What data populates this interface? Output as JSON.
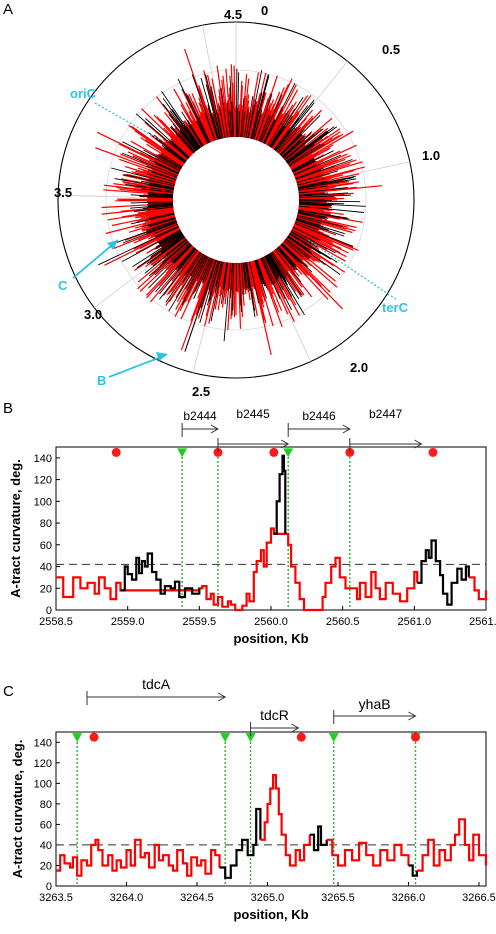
{
  "panels": {
    "a": "A",
    "b": "B",
    "c": "C"
  },
  "chart_data": [
    {
      "type": "radial",
      "panel": "A",
      "ring_labels": [
        "0",
        "0.5",
        "1.0",
        "2.0",
        "2.5",
        "3.0",
        "3.5",
        "4.5"
      ],
      "ring_values": [
        0,
        0.5,
        1.0,
        2.0,
        2.5,
        3.0,
        3.5,
        4.5
      ],
      "genome_length": 4.64,
      "annotations": [
        {
          "text": "oriC",
          "position": 3.9
        },
        {
          "text": "terC",
          "position": 1.6
        },
        {
          "text": "C",
          "position": 3.25
        },
        {
          "text": "B",
          "position": 2.56
        }
      ],
      "colors": {
        "primary": "#ff0000",
        "secondary": "#000000",
        "annotation": "#2ec4e0"
      }
    },
    {
      "type": "line",
      "panel": "B",
      "xlabel": "position, Kb",
      "ylabel": "A-tract curvature, deg.",
      "xlim": [
        2558.5,
        2561.5
      ],
      "ylim": [
        0,
        150
      ],
      "xticks": [
        "2558.5",
        "2559.0",
        "2559.5",
        "2560.0",
        "2560.5",
        "2561.0",
        "2561.5"
      ],
      "yticks": [
        "0",
        "20",
        "40",
        "60",
        "80",
        "100",
        "120",
        "140"
      ],
      "threshold": 42,
      "genes": [
        {
          "name": "b2444",
          "start": 2559.38,
          "end": 2559.63
        },
        {
          "name": "b2445",
          "start": 2559.63,
          "end": 2560.12
        },
        {
          "name": "b2446",
          "start": 2560.12,
          "end": 2560.55
        },
        {
          "name": "b2447",
          "start": 2560.55,
          "end": 2561.05
        }
      ],
      "green_markers": [
        2559.38,
        2560.12
      ],
      "red_markers": [
        2558.92,
        2559.63,
        2560.02,
        2560.55,
        2561.13
      ],
      "dotted_lines": [
        2559.38,
        2559.63,
        2560.12,
        2560.55
      ],
      "series": [
        {
          "color": "#ff0000",
          "points": [
            [
              2558.5,
              30
            ],
            [
              2558.55,
              12
            ],
            [
              2558.6,
              12
            ],
            [
              2558.62,
              30
            ],
            [
              2558.67,
              20
            ],
            [
              2558.72,
              25
            ],
            [
              2558.77,
              15
            ],
            [
              2558.8,
              30
            ],
            [
              2558.84,
              20
            ],
            [
              2558.88,
              10
            ],
            [
              2558.92,
              25
            ],
            [
              2558.95,
              18
            ],
            [
              2559.5,
              20
            ],
            [
              2559.52,
              22
            ],
            [
              2559.55,
              10
            ],
            [
              2559.58,
              15
            ],
            [
              2559.6,
              5
            ],
            [
              2559.63,
              12
            ],
            [
              2559.66,
              3
            ],
            [
              2559.7,
              8
            ],
            [
              2559.72,
              5
            ],
            [
              2559.75,
              0
            ],
            [
              2559.8,
              4
            ],
            [
              2559.83,
              15
            ],
            [
              2559.85,
              8
            ],
            [
              2559.88,
              35
            ],
            [
              2559.9,
              45
            ],
            [
              2559.93,
              55
            ],
            [
              2559.95,
              40
            ],
            [
              2559.97,
              62
            ],
            [
              2560.0,
              75
            ],
            [
              2560.02,
              70
            ],
            [
              2560.1,
              70
            ],
            [
              2560.12,
              60
            ],
            [
              2560.14,
              40
            ],
            [
              2560.17,
              25
            ],
            [
              2560.2,
              10
            ],
            [
              2560.23,
              0
            ],
            [
              2560.3,
              0
            ],
            [
              2560.36,
              12
            ],
            [
              2560.38,
              25
            ],
            [
              2560.42,
              40
            ],
            [
              2560.45,
              48
            ],
            [
              2560.48,
              30
            ],
            [
              2560.52,
              20
            ],
            [
              2560.56,
              20
            ],
            [
              2560.6,
              10
            ],
            [
              2560.62,
              25
            ],
            [
              2560.66,
              12
            ],
            [
              2560.7,
              35
            ],
            [
              2560.73,
              20
            ],
            [
              2560.76,
              10
            ],
            [
              2560.8,
              25
            ],
            [
              2560.85,
              15
            ],
            [
              2560.9,
              8
            ],
            [
              2560.95,
              20
            ],
            [
              2561.0,
              35
            ],
            [
              2561.02,
              25
            ]
          ]
        },
        {
          "color": "#000000",
          "points": [
            [
              2558.95,
              18
            ],
            [
              2558.98,
              40
            ],
            [
              2559.0,
              33
            ],
            [
              2559.03,
              28
            ],
            [
              2559.06,
              48
            ],
            [
              2559.08,
              34
            ],
            [
              2559.1,
              45
            ],
            [
              2559.12,
              40
            ],
            [
              2559.14,
              52
            ],
            [
              2559.17,
              35
            ],
            [
              2559.2,
              28
            ],
            [
              2559.23,
              15
            ],
            [
              2559.26,
              22
            ],
            [
              2559.3,
              20
            ],
            [
              2559.33,
              26
            ],
            [
              2559.36,
              12
            ],
            [
              2559.4,
              20
            ],
            [
              2559.45,
              15
            ],
            [
              2559.5,
              20
            ]
          ]
        },
        {
          "color": "#000000",
          "points": [
            [
              2560.02,
              70
            ],
            [
              2560.04,
              100
            ],
            [
              2560.06,
              125
            ],
            [
              2560.08,
              142
            ],
            [
              2560.09,
              128
            ],
            [
              2560.1,
              70
            ]
          ]
        },
        {
          "color": "#000000",
          "points": [
            [
              2561.02,
              25
            ],
            [
              2561.05,
              45
            ],
            [
              2561.08,
              55
            ],
            [
              2561.1,
              48
            ],
            [
              2561.12,
              64
            ],
            [
              2561.15,
              45
            ],
            [
              2561.18,
              32
            ],
            [
              2561.2,
              15
            ],
            [
              2561.23,
              5
            ],
            [
              2561.26,
              25
            ],
            [
              2561.3,
              38
            ],
            [
              2561.33,
              28
            ],
            [
              2561.36,
              40
            ],
            [
              2561.38,
              30
            ]
          ]
        },
        {
          "color": "#ff0000",
          "points": [
            [
              2561.38,
              30
            ],
            [
              2561.42,
              18
            ],
            [
              2561.45,
              10
            ],
            [
              2561.5,
              18
            ]
          ]
        }
      ]
    },
    {
      "type": "line",
      "panel": "C",
      "xlabel": "position, Kb",
      "ylabel": "A-tract curvature, deg.",
      "xlim": [
        3263.5,
        3266.55
      ],
      "ylim": [
        0,
        150
      ],
      "xticks": [
        "3263.5",
        "3264.0",
        "3264.5",
        "3265.0",
        "3265.5",
        "3266.0",
        "3266.5"
      ],
      "yticks": [
        "0",
        "20",
        "40",
        "60",
        "80",
        "100",
        "120",
        "140"
      ],
      "threshold": 40,
      "genes": [
        {
          "name": "tdcA",
          "start": 3263.72,
          "end": 3264.7
        },
        {
          "name": "tdcR",
          "start": 3264.88,
          "end": 3265.22
        },
        {
          "name": "yhaB",
          "start": 3265.47,
          "end": 3266.05
        }
      ],
      "green_markers": [
        3263.65,
        3264.7,
        3264.88,
        3265.47,
        3266.05
      ],
      "red_markers": [
        3263.77,
        3265.24,
        3266.05
      ],
      "dotted_lines": [
        3263.65,
        3264.7,
        3264.88,
        3265.47,
        3266.05
      ],
      "series": [
        {
          "color": "#ff0000",
          "points": [
            [
              3263.5,
              15
            ],
            [
              3263.53,
              30
            ],
            [
              3263.56,
              22
            ],
            [
              3263.6,
              18
            ],
            [
              3263.62,
              28
            ],
            [
              3263.65,
              10
            ],
            [
              3263.68,
              25
            ],
            [
              3263.72,
              20
            ],
            [
              3263.75,
              40
            ],
            [
              3263.78,
              45
            ],
            [
              3263.8,
              35
            ],
            [
              3263.83,
              20
            ],
            [
              3263.87,
              30
            ],
            [
              3263.9,
              15
            ],
            [
              3263.93,
              25
            ],
            [
              3263.96,
              18
            ],
            [
              3264.0,
              35
            ],
            [
              3264.03,
              20
            ],
            [
              3264.06,
              45
            ],
            [
              3264.1,
              28
            ],
            [
              3264.13,
              32
            ],
            [
              3264.16,
              18
            ],
            [
              3264.2,
              40
            ],
            [
              3264.23,
              25
            ],
            [
              3264.26,
              30
            ],
            [
              3264.3,
              20
            ],
            [
              3264.33,
              15
            ],
            [
              3264.36,
              35
            ],
            [
              3264.4,
              22
            ],
            [
              3264.43,
              10
            ],
            [
              3264.46,
              28
            ],
            [
              3264.5,
              20
            ],
            [
              3264.53,
              25
            ],
            [
              3264.56,
              12
            ],
            [
              3264.6,
              35
            ],
            [
              3264.63,
              30
            ],
            [
              3264.66,
              18
            ]
          ]
        },
        {
          "color": "#000000",
          "points": [
            [
              3264.66,
              18
            ],
            [
              3264.7,
              8
            ],
            [
              3264.74,
              20
            ],
            [
              3264.78,
              35
            ],
            [
              3264.82,
              45
            ],
            [
              3264.86,
              30
            ],
            [
              3264.9,
              40
            ],
            [
              3264.92,
              75
            ],
            [
              3264.95,
              45
            ]
          ]
        },
        {
          "color": "#ff0000",
          "points": [
            [
              3264.95,
              45
            ],
            [
              3264.98,
              62
            ],
            [
              3265.0,
              80
            ],
            [
              3265.02,
              95
            ],
            [
              3265.04,
              108
            ],
            [
              3265.06,
              95
            ],
            [
              3265.08,
              70
            ],
            [
              3265.1,
              50
            ],
            [
              3265.13,
              30
            ],
            [
              3265.16,
              20
            ],
            [
              3265.2,
              35
            ],
            [
              3265.23,
              25
            ],
            [
              3265.26,
              40
            ],
            [
              3265.3,
              50
            ]
          ]
        },
        {
          "color": "#000000",
          "points": [
            [
              3265.3,
              50
            ],
            [
              3265.33,
              35
            ],
            [
              3265.36,
              58
            ],
            [
              3265.38,
              40
            ],
            [
              3265.42,
              45
            ]
          ]
        },
        {
          "color": "#ff0000",
          "points": [
            [
              3265.42,
              45
            ],
            [
              3265.46,
              30
            ],
            [
              3265.5,
              20
            ],
            [
              3265.55,
              35
            ],
            [
              3265.6,
              25
            ],
            [
              3265.65,
              42
            ],
            [
              3265.7,
              30
            ],
            [
              3265.75,
              20
            ],
            [
              3265.8,
              35
            ],
            [
              3265.85,
              25
            ],
            [
              3265.9,
              40
            ],
            [
              3265.95,
              30
            ],
            [
              3266.0,
              20
            ]
          ]
        },
        {
          "color": "#000000",
          "points": [
            [
              3266.0,
              20
            ],
            [
              3266.03,
              10
            ],
            [
              3266.06,
              15
            ]
          ]
        },
        {
          "color": "#ff0000",
          "points": [
            [
              3266.06,
              15
            ],
            [
              3266.1,
              30
            ],
            [
              3266.14,
              45
            ],
            [
              3266.18,
              20
            ],
            [
              3266.22,
              35
            ],
            [
              3266.26,
              25
            ],
            [
              3266.3,
              40
            ],
            [
              3266.33,
              50
            ],
            [
              3266.36,
              65
            ],
            [
              3266.4,
              40
            ],
            [
              3266.43,
              25
            ],
            [
              3266.46,
              50
            ],
            [
              3266.5,
              30
            ],
            [
              3266.55,
              20
            ]
          ]
        }
      ]
    }
  ]
}
